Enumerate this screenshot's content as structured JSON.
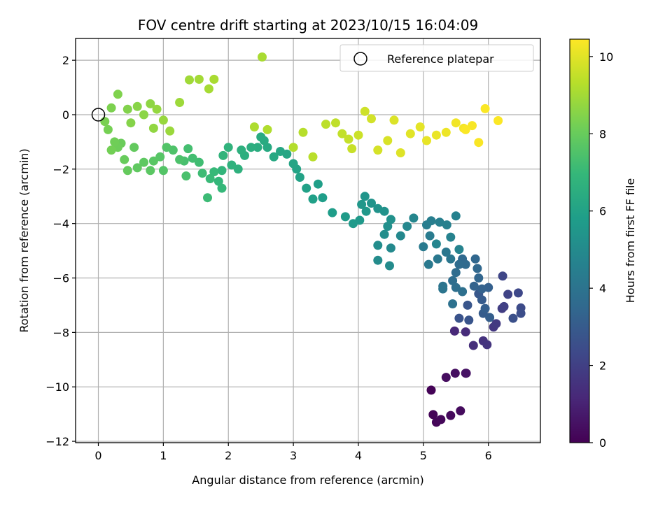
{
  "chart_data": {
    "type": "scatter",
    "title": "FOV centre drift starting at 2023/10/15 16:04:09",
    "xlabel": "Angular distance from reference (arcmin)",
    "ylabel": "Rotation from reference (arcmin)",
    "xlim": [
      -0.35,
      6.8
    ],
    "ylim": [
      -12.05,
      2.8
    ],
    "xticks": [
      0,
      1,
      2,
      3,
      4,
      5,
      6
    ],
    "yticks": [
      2,
      0,
      -2,
      -4,
      -6,
      -8,
      -10,
      -12
    ],
    "ytick_labels": [
      "2",
      "0",
      "−2",
      "−4",
      "−6",
      "−8",
      "−10",
      "−12"
    ],
    "grid": true,
    "legend": {
      "placement": "top-right",
      "entries": [
        "Reference platepar"
      ]
    },
    "reference_point": {
      "x": 0,
      "y": 0,
      "marker": "open-circle",
      "color": "#000000"
    },
    "colorbar": {
      "label": "Hours from first FF file",
      "range": [
        0,
        10.45
      ],
      "ticks": [
        0,
        2,
        4,
        6,
        8,
        10
      ],
      "colormap": "viridis",
      "colors": [
        "#440154",
        "#482878",
        "#3e4989",
        "#31688e",
        "#26828e",
        "#1f9e89",
        "#35b779",
        "#6ece58",
        "#b5de2b",
        "#fde725"
      ]
    },
    "series": [
      {
        "color_by": "hours",
        "points": [
          [
            5.12,
            -10.12,
            0.05
          ],
          [
            5.15,
            -11.02,
            0.1
          ],
          [
            5.2,
            -11.3,
            0.15
          ],
          [
            5.27,
            -11.2,
            0.2
          ],
          [
            5.42,
            -11.05,
            0.25
          ],
          [
            5.57,
            -10.88,
            0.3
          ],
          [
            5.35,
            -9.65,
            0.35
          ],
          [
            5.49,
            -9.5,
            0.4
          ],
          [
            5.65,
            -9.5,
            0.45
          ],
          [
            5.66,
            -9.5,
            0.5
          ],
          [
            5.48,
            -7.95,
            1.2
          ],
          [
            5.65,
            -7.98,
            1.3
          ],
          [
            5.77,
            -8.48,
            1.4
          ],
          [
            5.92,
            -8.31,
            1.5
          ],
          [
            5.98,
            -8.45,
            1.6
          ],
          [
            6.08,
            -7.8,
            1.7
          ],
          [
            6.12,
            -7.68,
            1.8
          ],
          [
            6.21,
            -7.12,
            1.9
          ],
          [
            6.24,
            -7.05,
            2.0
          ],
          [
            6.3,
            -6.6,
            2.1
          ],
          [
            6.22,
            -5.93,
            2.2
          ],
          [
            6.46,
            -6.55,
            2.3
          ],
          [
            6.5,
            -7.1,
            2.4
          ],
          [
            6.5,
            -7.3,
            2.5
          ],
          [
            6.38,
            -7.48,
            2.6
          ],
          [
            5.55,
            -7.48,
            2.7
          ],
          [
            5.7,
            -7.55,
            2.75
          ],
          [
            5.68,
            -7.0,
            2.8
          ],
          [
            5.85,
            -6.58,
            2.9
          ],
          [
            5.9,
            -6.8,
            3.0
          ],
          [
            5.92,
            -7.3,
            3.05
          ],
          [
            6.02,
            -7.45,
            3.1
          ],
          [
            5.95,
            -7.12,
            3.15
          ],
          [
            6.0,
            -6.35,
            3.2
          ],
          [
            5.9,
            -6.4,
            3.25
          ],
          [
            5.78,
            -6.3,
            3.3
          ],
          [
            5.85,
            -6.0,
            3.4
          ],
          [
            5.8,
            -5.3,
            3.45
          ],
          [
            5.83,
            -5.65,
            3.5
          ],
          [
            5.6,
            -5.3,
            3.55
          ],
          [
            5.65,
            -5.5,
            3.6
          ],
          [
            5.55,
            -5.5,
            3.65
          ],
          [
            5.5,
            -5.8,
            3.7
          ],
          [
            5.45,
            -6.1,
            3.75
          ],
          [
            5.5,
            -6.35,
            3.8
          ],
          [
            5.6,
            -6.5,
            3.85
          ],
          [
            5.45,
            -6.95,
            3.9
          ],
          [
            5.3,
            -6.3,
            4.0
          ],
          [
            5.3,
            -6.4,
            4.05
          ],
          [
            5.42,
            -5.3,
            4.1
          ],
          [
            5.35,
            -5.05,
            4.15
          ],
          [
            5.22,
            -5.3,
            4.2
          ],
          [
            5.08,
            -5.5,
            4.25
          ],
          [
            5.0,
            -4.85,
            4.3
          ],
          [
            5.1,
            -4.45,
            4.35
          ],
          [
            5.05,
            -4.05,
            4.4
          ],
          [
            5.12,
            -3.9,
            4.45
          ],
          [
            5.25,
            -3.95,
            4.5
          ],
          [
            5.36,
            -4.05,
            4.55
          ],
          [
            5.5,
            -3.72,
            4.6
          ],
          [
            5.42,
            -4.5,
            4.65
          ],
          [
            5.55,
            -4.95,
            4.7
          ],
          [
            5.2,
            -4.75,
            4.75
          ],
          [
            4.85,
            -3.8,
            4.8
          ],
          [
            4.75,
            -4.1,
            4.85
          ],
          [
            4.65,
            -4.45,
            4.9
          ],
          [
            4.5,
            -4.9,
            4.95
          ],
          [
            4.48,
            -5.55,
            5.0
          ],
          [
            4.3,
            -5.35,
            5.05
          ],
          [
            4.3,
            -4.8,
            5.1
          ],
          [
            4.4,
            -4.4,
            5.15
          ],
          [
            4.45,
            -4.1,
            5.2
          ],
          [
            4.5,
            -3.85,
            5.25
          ],
          [
            4.4,
            -3.55,
            5.3
          ],
          [
            4.3,
            -3.45,
            5.35
          ],
          [
            4.2,
            -3.25,
            5.4
          ],
          [
            4.1,
            -3.0,
            5.45
          ],
          [
            4.05,
            -3.3,
            5.5
          ],
          [
            4.12,
            -3.55,
            5.55
          ],
          [
            4.02,
            -3.88,
            5.6
          ],
          [
            3.92,
            -4.0,
            5.65
          ],
          [
            3.8,
            -3.75,
            5.7
          ],
          [
            3.6,
            -3.6,
            5.75
          ],
          [
            3.45,
            -3.05,
            5.8
          ],
          [
            3.38,
            -2.55,
            5.85
          ],
          [
            3.3,
            -3.1,
            5.9
          ],
          [
            3.2,
            -2.7,
            5.95
          ],
          [
            3.1,
            -2.3,
            6.0
          ],
          [
            3.05,
            -2.0,
            6.05
          ],
          [
            3.0,
            -1.8,
            6.1
          ],
          [
            2.9,
            -1.45,
            6.15
          ],
          [
            2.8,
            -1.35,
            6.2
          ],
          [
            2.7,
            -1.55,
            6.25
          ],
          [
            2.6,
            -1.2,
            6.3
          ],
          [
            2.55,
            -0.95,
            6.35
          ],
          [
            2.5,
            -0.82,
            6.4
          ],
          [
            2.45,
            -1.2,
            6.45
          ],
          [
            2.35,
            -1.2,
            6.5
          ],
          [
            2.25,
            -1.5,
            6.55
          ],
          [
            2.2,
            -1.3,
            6.6
          ],
          [
            2.15,
            -2.0,
            6.65
          ],
          [
            2.05,
            -1.85,
            6.7
          ],
          [
            2.0,
            -1.2,
            6.75
          ],
          [
            1.92,
            -1.5,
            6.8
          ],
          [
            1.9,
            -2.05,
            6.85
          ],
          [
            1.85,
            -2.45,
            6.9
          ],
          [
            1.9,
            -2.7,
            6.95
          ],
          [
            1.78,
            -2.1,
            7.0
          ],
          [
            1.72,
            -2.35,
            7.05
          ],
          [
            1.68,
            -3.05,
            7.1
          ],
          [
            1.6,
            -2.15,
            7.15
          ],
          [
            1.55,
            -1.75,
            7.2
          ],
          [
            1.45,
            -1.6,
            7.25
          ],
          [
            1.38,
            -1.25,
            7.3
          ],
          [
            1.32,
            -1.7,
            7.35
          ],
          [
            1.35,
            -2.25,
            7.4
          ],
          [
            1.25,
            -1.65,
            7.45
          ],
          [
            1.15,
            -1.3,
            7.5
          ],
          [
            1.05,
            -1.2,
            7.55
          ],
          [
            1.0,
            -2.05,
            7.6
          ],
          [
            0.95,
            -1.55,
            7.65
          ],
          [
            0.85,
            -1.7,
            7.7
          ],
          [
            0.8,
            -2.05,
            7.75
          ],
          [
            0.7,
            -1.75,
            7.8
          ],
          [
            0.6,
            -1.95,
            7.85
          ],
          [
            0.55,
            -1.2,
            7.9
          ],
          [
            0.45,
            -2.05,
            7.95
          ],
          [
            0.4,
            -1.65,
            8.0
          ],
          [
            0.35,
            -1.05,
            8.05
          ],
          [
            0.3,
            -1.2,
            8.1
          ],
          [
            0.25,
            -1.0,
            8.15
          ],
          [
            0.2,
            -1.3,
            8.2
          ],
          [
            0.15,
            -0.55,
            8.25
          ],
          [
            0.1,
            -0.25,
            8.3
          ],
          [
            0.2,
            0.25,
            8.35
          ],
          [
            0.3,
            0.75,
            8.4
          ],
          [
            0.45,
            0.2,
            8.45
          ],
          [
            0.5,
            -0.3,
            8.5
          ],
          [
            0.6,
            0.3,
            8.55
          ],
          [
            0.7,
            0.0,
            8.6
          ],
          [
            0.8,
            0.4,
            8.65
          ],
          [
            0.85,
            -0.5,
            8.7
          ],
          [
            0.9,
            0.2,
            8.75
          ],
          [
            1.0,
            -0.2,
            8.8
          ],
          [
            1.1,
            -0.6,
            8.85
          ],
          [
            1.25,
            0.45,
            8.9
          ],
          [
            1.4,
            1.28,
            8.95
          ],
          [
            1.55,
            1.3,
            9.0
          ],
          [
            1.7,
            0.95,
            9.05
          ],
          [
            1.78,
            1.3,
            9.1
          ],
          [
            2.52,
            2.12,
            9.1
          ],
          [
            2.4,
            -0.45,
            9.15
          ],
          [
            2.6,
            -0.55,
            9.2
          ],
          [
            3.0,
            -1.2,
            9.25
          ],
          [
            3.15,
            -0.65,
            9.3
          ],
          [
            3.3,
            -1.55,
            9.35
          ],
          [
            3.5,
            -0.35,
            9.4
          ],
          [
            3.65,
            -0.3,
            9.45
          ],
          [
            3.75,
            -0.7,
            9.5
          ],
          [
            3.85,
            -0.9,
            9.55
          ],
          [
            3.9,
            -1.25,
            9.6
          ],
          [
            4.0,
            -0.75,
            9.65
          ],
          [
            4.1,
            0.12,
            9.7
          ],
          [
            4.2,
            -0.15,
            9.75
          ],
          [
            4.3,
            -1.3,
            9.8
          ],
          [
            4.45,
            -0.95,
            9.85
          ],
          [
            4.55,
            -0.2,
            9.9
          ],
          [
            4.65,
            -1.4,
            9.95
          ],
          [
            4.8,
            -0.7,
            10.0
          ],
          [
            4.95,
            -0.45,
            10.05
          ],
          [
            5.05,
            -0.95,
            10.1
          ],
          [
            5.2,
            -0.75,
            10.15
          ],
          [
            5.35,
            -0.65,
            10.2
          ],
          [
            5.5,
            -0.3,
            10.25
          ],
          [
            5.62,
            -0.5,
            10.3
          ],
          [
            5.75,
            -0.4,
            10.35
          ],
          [
            5.85,
            -1.02,
            10.38
          ],
          [
            5.95,
            0.22,
            10.4
          ],
          [
            6.15,
            -0.22,
            10.42
          ],
          [
            5.65,
            -0.55,
            10.4
          ]
        ]
      }
    ]
  }
}
